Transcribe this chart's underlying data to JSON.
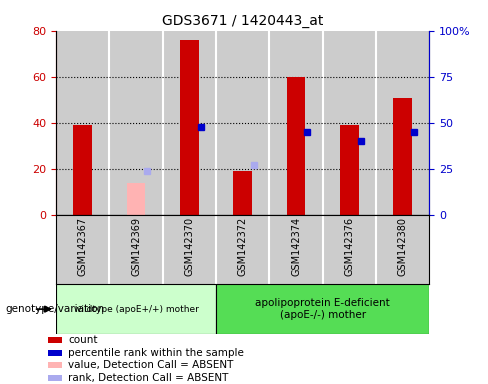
{
  "title": "GDS3671 / 1420443_at",
  "samples": [
    "GSM142367",
    "GSM142369",
    "GSM142370",
    "GSM142372",
    "GSM142374",
    "GSM142376",
    "GSM142380"
  ],
  "count_values": [
    39,
    null,
    76,
    19,
    60,
    39,
    51
  ],
  "count_absent": [
    null,
    14,
    null,
    null,
    null,
    null,
    null
  ],
  "percentile_values": [
    null,
    null,
    48,
    null,
    45,
    40,
    45
  ],
  "percentile_absent": [
    null,
    24,
    null,
    27,
    null,
    null,
    null
  ],
  "ylim_left": [
    0,
    80
  ],
  "ylim_right": [
    0,
    100
  ],
  "yticks_left": [
    0,
    20,
    40,
    60,
    80
  ],
  "ytick_labels_right": [
    "0",
    "25",
    "50",
    "75",
    "100%"
  ],
  "yticks_right": [
    0,
    25,
    50,
    75,
    100
  ],
  "count_color": "#cc0000",
  "count_absent_color": "#ffb3b3",
  "percentile_color": "#0000cc",
  "percentile_absent_color": "#aaaaee",
  "group1_label": "wildtype (apoE+/+) mother",
  "group2_label": "apolipoprotein E-deficient\n(apoE-/-) mother",
  "group1_color": "#ccffcc",
  "group2_color": "#55dd55",
  "col_bg": "#cccccc",
  "genotype_label": "genotype/variation",
  "legend_items": [
    {
      "label": "count",
      "color": "#cc0000"
    },
    {
      "label": "percentile rank within the sample",
      "color": "#0000cc"
    },
    {
      "label": "value, Detection Call = ABSENT",
      "color": "#ffb3b3"
    },
    {
      "label": "rank, Detection Call = ABSENT",
      "color": "#aaaaee"
    }
  ]
}
